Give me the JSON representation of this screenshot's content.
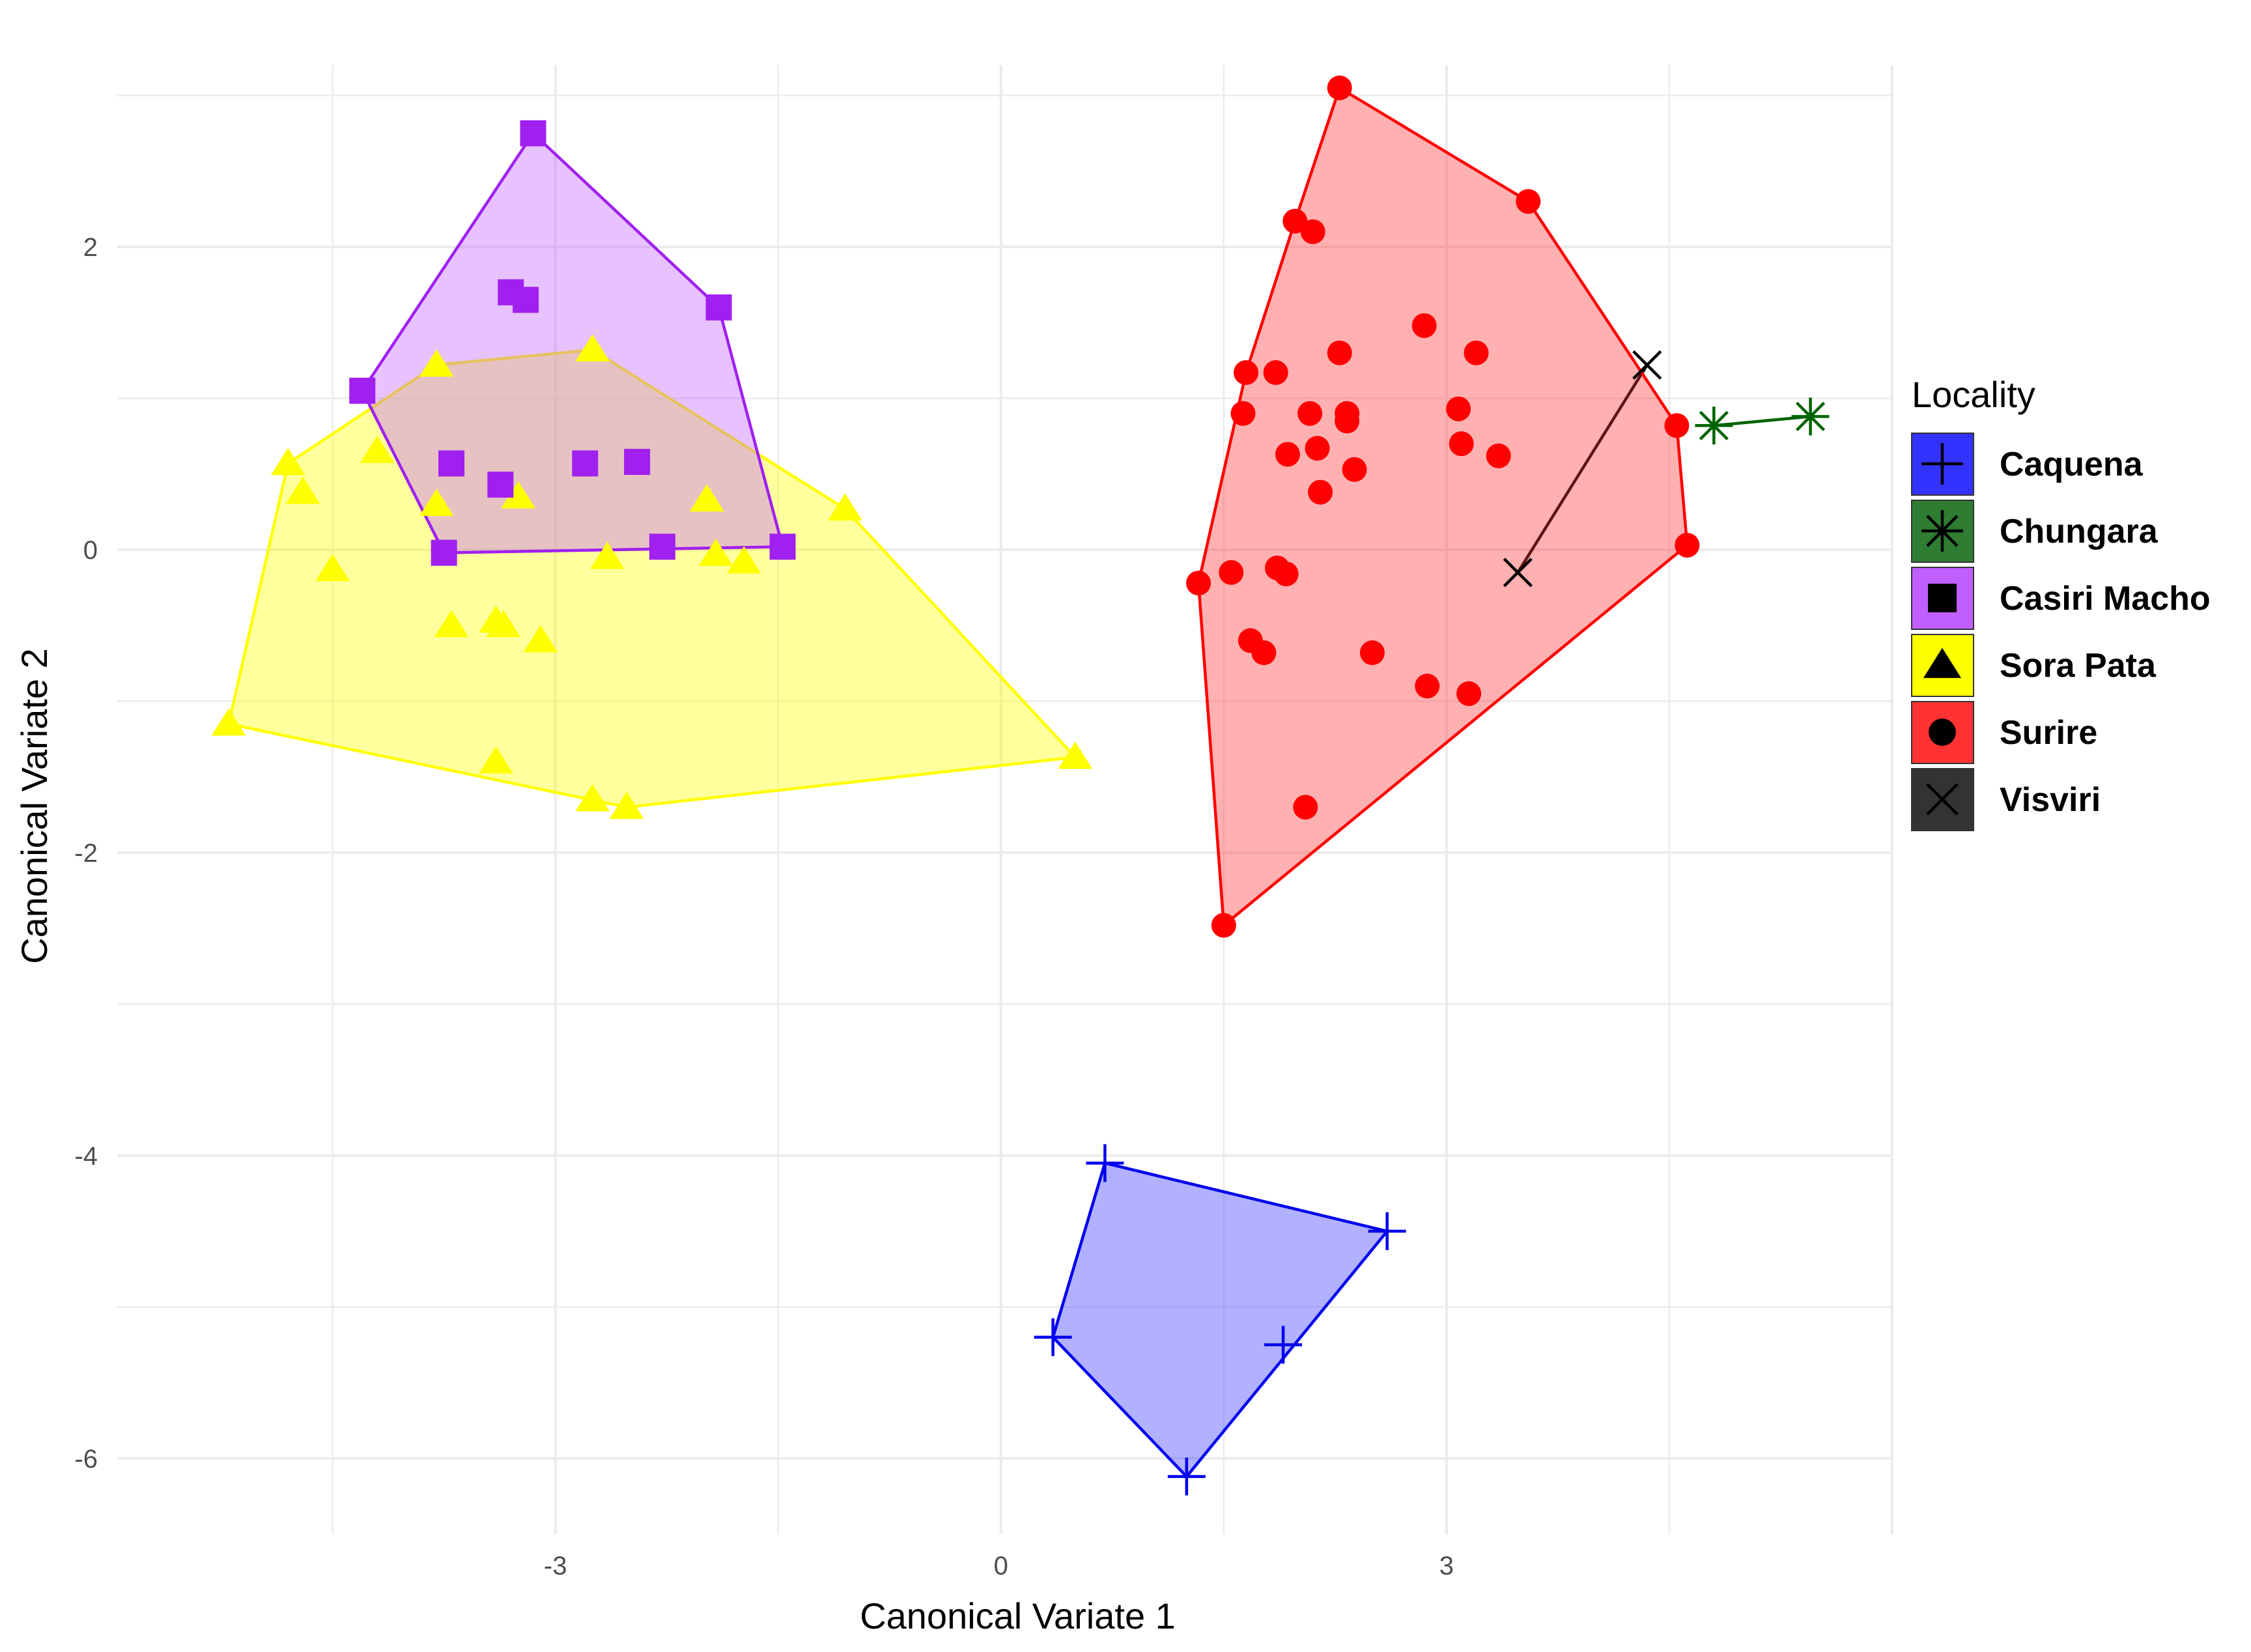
{
  "chart_data": {
    "type": "scatter",
    "title": "",
    "xlabel": "Canonical Variate 1",
    "ylabel": "Canonical Variate 2",
    "xlim": [
      -5.95,
      6.0
    ],
    "ylim": [
      -6.5,
      3.2
    ],
    "x_ticks": [
      -3,
      0,
      3
    ],
    "y_ticks": [
      2,
      0,
      -2,
      -4,
      -6
    ],
    "x_tick_labels": [
      "-3",
      "0",
      "3"
    ],
    "y_tick_labels": [
      "2",
      "0",
      "-2",
      "-4",
      "-6"
    ],
    "grid": true,
    "hulls": true,
    "legend": {
      "title": "Locality",
      "position": "right"
    },
    "series": [
      {
        "name": "Caquena",
        "color": "#0000ee",
        "fill": "#3333ff",
        "marker": "plus-icon",
        "points": [
          [
            0.7,
            -4.05
          ],
          [
            2.6,
            -4.5
          ],
          [
            0.35,
            -5.2
          ],
          [
            1.9,
            -5.25
          ],
          [
            1.25,
            -6.12
          ]
        ]
      },
      {
        "name": "Chungara",
        "color": "#006400",
        "fill": "#2e7d32",
        "marker": "asterisk-icon",
        "points": [
          [
            4.8,
            0.82
          ],
          [
            5.45,
            0.88
          ]
        ]
      },
      {
        "name": "Casiri Macho",
        "color": "#a020f0",
        "fill": "#bf5fff",
        "marker": "square-icon",
        "points": [
          [
            -3.15,
            2.75
          ],
          [
            -3.3,
            1.7
          ],
          [
            -3.2,
            1.65
          ],
          [
            -1.9,
            1.6
          ],
          [
            -4.3,
            1.05
          ],
          [
            -3.7,
            0.57
          ],
          [
            -3.37,
            0.43
          ],
          [
            -2.8,
            0.57
          ],
          [
            -2.45,
            0.58
          ],
          [
            -3.75,
            -0.02
          ],
          [
            -2.28,
            0.02
          ],
          [
            -1.47,
            0.02
          ]
        ]
      },
      {
        "name": "Sora Pata",
        "color": "#ffff00",
        "fill": "#ffff00",
        "marker": "triangle-icon",
        "points": [
          [
            -2.75,
            1.32
          ],
          [
            -3.8,
            1.22
          ],
          [
            -4.8,
            0.57
          ],
          [
            -4.7,
            0.38
          ],
          [
            -4.2,
            0.65
          ],
          [
            -3.8,
            0.3
          ],
          [
            -3.25,
            0.35
          ],
          [
            -1.98,
            0.33
          ],
          [
            -1.05,
            0.27
          ],
          [
            -4.5,
            -0.13
          ],
          [
            -2.65,
            -0.05
          ],
          [
            -1.92,
            -0.03
          ],
          [
            -1.73,
            -0.08
          ],
          [
            -3.7,
            -0.5
          ],
          [
            -3.4,
            -0.47
          ],
          [
            -3.35,
            -0.5
          ],
          [
            -3.1,
            -0.6
          ],
          [
            -5.2,
            -1.15
          ],
          [
            -3.4,
            -1.4
          ],
          [
            -2.75,
            -1.65
          ],
          [
            -2.52,
            -1.7
          ],
          [
            0.5,
            -1.37
          ]
        ]
      },
      {
        "name": "Surire",
        "color": "#ff0000",
        "fill": "#ff3333",
        "marker": "circle-icon",
        "points": [
          [
            2.28,
            3.05
          ],
          [
            3.55,
            2.3
          ],
          [
            1.98,
            2.17
          ],
          [
            2.1,
            2.1
          ],
          [
            2.85,
            1.48
          ],
          [
            2.28,
            1.3
          ],
          [
            3.2,
            1.3
          ],
          [
            1.65,
            1.17
          ],
          [
            1.85,
            1.17
          ],
          [
            3.08,
            0.93
          ],
          [
            2.08,
            0.9
          ],
          [
            2.33,
            0.9
          ],
          [
            1.63,
            0.9
          ],
          [
            2.33,
            0.85
          ],
          [
            4.55,
            0.82
          ],
          [
            2.13,
            0.67
          ],
          [
            3.1,
            0.7
          ],
          [
            1.93,
            0.63
          ],
          [
            2.38,
            0.53
          ],
          [
            3.35,
            0.62
          ],
          [
            2.15,
            0.38
          ],
          [
            4.62,
            0.03
          ],
          [
            1.33,
            -0.22
          ],
          [
            1.55,
            -0.15
          ],
          [
            1.86,
            -0.12
          ],
          [
            1.92,
            -0.16
          ],
          [
            1.68,
            -0.6
          ],
          [
            1.77,
            -0.68
          ],
          [
            2.5,
            -0.68
          ],
          [
            2.87,
            -0.9
          ],
          [
            3.15,
            -0.95
          ],
          [
            2.05,
            -1.7
          ],
          [
            1.5,
            -2.48
          ]
        ]
      },
      {
        "name": "Visviri",
        "color": "#000000",
        "fill": "#333333",
        "marker": "x-icon",
        "points": [
          [
            4.35,
            1.22
          ],
          [
            3.48,
            -0.15
          ]
        ]
      }
    ]
  }
}
